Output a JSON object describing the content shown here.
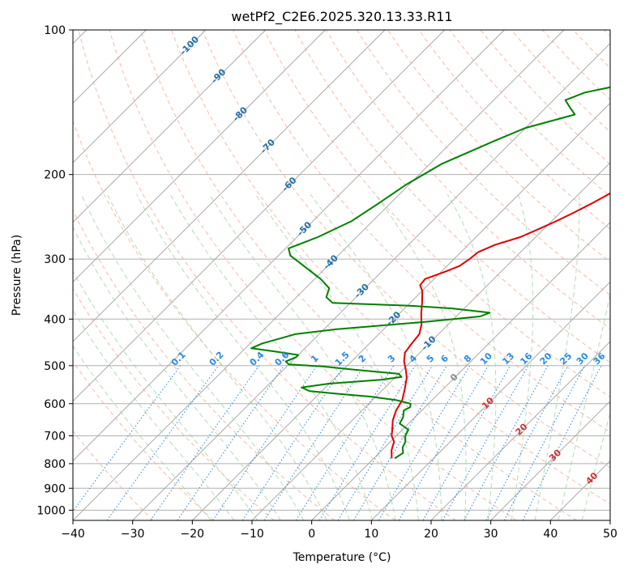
{
  "chart_data": {
    "type": "line",
    "title": "wetPf2_C2E6.2025.320.13.33.R11",
    "xlabel": "Temperature (°C)",
    "ylabel": "Pressure (hPa)",
    "xlim": [
      -40,
      50
    ],
    "ylim": [
      1050,
      100
    ],
    "y_scale": "log",
    "skew": true,
    "grid": true,
    "x_ticks": [
      -40,
      -30,
      -20,
      -10,
      0,
      10,
      20,
      30,
      40,
      50
    ],
    "y_ticks": [
      100,
      200,
      300,
      400,
      500,
      600,
      700,
      800,
      900,
      1000
    ],
    "series": [
      {
        "color": "#e00000",
        "points": [
          [
            0.5,
            100
          ],
          [
            -0.7,
            110
          ],
          [
            -1.0,
            120
          ],
          [
            -0.8,
            130
          ],
          [
            -0.4,
            140
          ],
          [
            -0.3,
            150
          ],
          [
            -0.5,
            160
          ],
          [
            -0.8,
            170
          ],
          [
            -1.5,
            180
          ],
          [
            -2.3,
            190
          ],
          [
            -3.0,
            200
          ],
          [
            -3.8,
            210
          ],
          [
            -5.0,
            220
          ],
          [
            -6.3,
            230
          ],
          [
            -7.7,
            240
          ],
          [
            -9.2,
            250
          ],
          [
            -10.9,
            260
          ],
          [
            -12.6,
            270
          ],
          [
            -15.5,
            280
          ],
          [
            -17.1,
            290
          ],
          [
            -17.4,
            300
          ],
          [
            -17.9,
            310
          ],
          [
            -19.6,
            320
          ],
          [
            -21.5,
            330
          ],
          [
            -21.3,
            340
          ],
          [
            -19.9,
            350
          ],
          [
            -18.0,
            370
          ],
          [
            -16.3,
            390
          ],
          [
            -14.5,
            410
          ],
          [
            -13.2,
            430
          ],
          [
            -12.9,
            450
          ],
          [
            -12.5,
            470
          ],
          [
            -11.2,
            490
          ],
          [
            -9.5,
            510
          ],
          [
            -8.0,
            530
          ],
          [
            -6.4,
            560
          ],
          [
            -5.0,
            590
          ],
          [
            -4.3,
            620
          ],
          [
            -3.2,
            650
          ],
          [
            -1.7,
            680
          ],
          [
            -0.8,
            700
          ],
          [
            0.6,
            720
          ],
          [
            1.6,
            750
          ],
          [
            3.0,
            780
          ]
        ]
      },
      {
        "color": "#008000",
        "points": [
          [
            0.5,
            100
          ],
          [
            -2.0,
            105
          ],
          [
            -4.0,
            110
          ],
          [
            -6.0,
            115
          ],
          [
            -8.5,
            120
          ],
          [
            -14.0,
            125
          ],
          [
            -21.0,
            130
          ],
          [
            -26.0,
            135
          ],
          [
            -28.0,
            140
          ],
          [
            -26.0,
            145
          ],
          [
            -24.0,
            150
          ],
          [
            -30.0,
            160
          ],
          [
            -33.0,
            170
          ],
          [
            -38.0,
            190
          ],
          [
            -40.5,
            210
          ],
          [
            -42.0,
            230
          ],
          [
            -43.5,
            250
          ],
          [
            -46.5,
            270
          ],
          [
            -49.5,
            285
          ],
          [
            -48.0,
            295
          ],
          [
            -44.0,
            310
          ],
          [
            -39.0,
            330
          ],
          [
            -36.0,
            345
          ],
          [
            -35.0,
            360
          ],
          [
            -33.0,
            370
          ],
          [
            -20.0,
            375
          ],
          [
            -12.0,
            380
          ],
          [
            -5.0,
            388
          ],
          [
            -6.0,
            395
          ],
          [
            -14.0,
            405
          ],
          [
            -28.0,
            420
          ],
          [
            -34.0,
            430
          ],
          [
            -38.0,
            450
          ],
          [
            -39.0,
            460
          ],
          [
            -34.0,
            468
          ],
          [
            -30.0,
            475
          ],
          [
            -30.0,
            480
          ],
          [
            -31.0,
            490
          ],
          [
            -30.0,
            497
          ],
          [
            -24.0,
            502
          ],
          [
            -18.0,
            510
          ],
          [
            -10.0,
            520
          ],
          [
            -9.0,
            528
          ],
          [
            -12.0,
            535
          ],
          [
            -20.0,
            545
          ],
          [
            -24.0,
            555
          ],
          [
            -22.0,
            565
          ],
          [
            -17.0,
            572
          ],
          [
            -11.0,
            580
          ],
          [
            -6.0,
            590
          ],
          [
            -3.0,
            600
          ],
          [
            -2.5,
            610
          ],
          [
            -3.0,
            620
          ],
          [
            -2.0,
            640
          ],
          [
            -1.5,
            660
          ],
          [
            1.0,
            680
          ],
          [
            1.5,
            700
          ],
          [
            2.5,
            720
          ],
          [
            3.0,
            740
          ],
          [
            4.0,
            760
          ],
          [
            3.5,
            780
          ]
        ]
      }
    ],
    "isohume_labels": [
      "0.1",
      "0.2",
      "0.4",
      "0.6",
      "1",
      "1.5",
      "2",
      "3",
      "4",
      "5",
      "6",
      "8",
      "10",
      "13",
      "16",
      "20",
      "25",
      "30",
      "36"
    ],
    "isohume_values": [
      0.1,
      0.2,
      0.4,
      0.6,
      1,
      1.5,
      2,
      3,
      4,
      5,
      6,
      8,
      10,
      13,
      16,
      20,
      25,
      30,
      36
    ],
    "dry_adiabat_labels": [
      "-100",
      "-90",
      "-80",
      "-70",
      "-60",
      "-50",
      "-40",
      "-30",
      "-20",
      "-10"
    ],
    "dry_adiabat_values": [
      -100,
      -90,
      -80,
      -70,
      -60,
      -50,
      -40,
      -30,
      -20,
      -10
    ],
    "moist_adiabat_labels": [
      "0",
      "10",
      "20",
      "30",
      "40"
    ],
    "moist_adiabat_values": [
      0,
      10,
      20,
      30,
      40
    ],
    "colors": {
      "temperature": "#e00000",
      "dewpoint": "#008000",
      "isotherm": "#a0a0a0",
      "dry_adiabat": "#f4a488",
      "moist_adiabat": "#9ccf9c",
      "mixing_ratio": "#3a8fd8",
      "dry_label": "#1f6fa8",
      "moist_label": "#d03030",
      "mix_label": "#2a8be0"
    }
  }
}
